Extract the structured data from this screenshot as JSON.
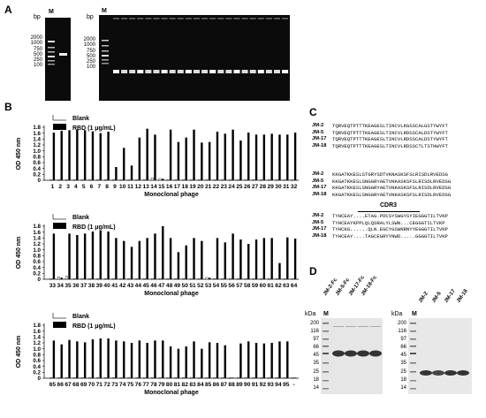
{
  "panels": {
    "a": "A",
    "b": "B",
    "c": "C",
    "d": "D"
  },
  "gel_a": {
    "unit": "bp",
    "marker": "M",
    "ladder": [
      "2000",
      "1000",
      "750",
      "500",
      "250",
      "100"
    ]
  },
  "chart_common": {
    "legend_blank": "Blank",
    "legend_rbd": "RBD (1 μg/mL)",
    "xlabel": "Monoclonal phage",
    "ylabel": "OD 450 nm",
    "yticks": [
      "0",
      "0.2",
      "0.4",
      "0.6",
      "0.8",
      "1.0",
      "1.2",
      "1.4",
      "1.6",
      "1.8"
    ]
  },
  "chart_data": [
    {
      "type": "bar",
      "categories": [
        "1",
        "2",
        "3",
        "4",
        "5",
        "6",
        "7",
        "8",
        "9",
        "10",
        "11",
        "12",
        "13",
        "14",
        "15",
        "16",
        "17",
        "18",
        "19",
        "20",
        "21",
        "22",
        "23",
        "24",
        "25",
        "26",
        "27",
        "28",
        "29",
        "30",
        "31",
        "32"
      ],
      "series": [
        {
          "name": "Blank",
          "values": [
            0.02,
            0.02,
            0.02,
            0.02,
            0.02,
            0.02,
            0.02,
            0.02,
            0.02,
            0.02,
            0.02,
            0.02,
            0.02,
            0.08,
            0.06,
            0.02,
            0.02,
            0.02,
            0.02,
            0.02,
            0.02,
            0.02,
            0.02,
            0.02,
            0.02,
            0.02,
            0.02,
            0.02,
            0.02,
            0.02,
            0.02,
            0.02
          ]
        },
        {
          "name": "RBD (1 μg/mL)",
          "values": [
            1.62,
            1.68,
            1.7,
            1.72,
            1.7,
            1.66,
            1.6,
            1.65,
            0.45,
            1.1,
            0.5,
            1.45,
            1.75,
            1.55,
            0.05,
            1.72,
            1.3,
            1.45,
            1.72,
            1.28,
            1.3,
            1.65,
            1.58,
            1.72,
            1.35,
            1.62,
            1.55,
            1.55,
            1.58,
            1.55,
            1.55,
            1.62
          ]
        }
      ],
      "ylim": [
        0,
        1.8
      ]
    },
    {
      "type": "bar",
      "categories": [
        "33",
        "34",
        "35",
        "36",
        "37",
        "38",
        "39",
        "40",
        "41",
        "42",
        "43",
        "44",
        "45",
        "46",
        "47",
        "48",
        "49",
        "50",
        "51",
        "52",
        "53",
        "54",
        "55",
        "56",
        "57",
        "58",
        "59",
        "60",
        "61",
        "62",
        "63",
        "64"
      ],
      "series": [
        {
          "name": "Blank",
          "values": [
            0.02,
            0.08,
            0.1,
            0.02,
            0.02,
            0.02,
            0.02,
            0.02,
            0.02,
            0.02,
            0.02,
            0.02,
            0.02,
            0.02,
            0.02,
            0.02,
            0.02,
            0.02,
            0.02,
            0.02,
            0.06,
            0.02,
            0.02,
            0.02,
            0.02,
            0.02,
            0.02,
            0.02,
            0.02,
            0.02,
            0.02,
            0.02
          ]
        },
        {
          "name": "RBD (1 μg/mL)",
          "values": [
            1.55,
            0.05,
            1.55,
            1.5,
            1.55,
            1.62,
            1.65,
            1.62,
            1.4,
            1.3,
            1.1,
            1.3,
            1.4,
            1.55,
            1.8,
            1.4,
            0.92,
            1.15,
            1.4,
            1.3,
            0.05,
            1.4,
            1.25,
            1.55,
            1.35,
            1.2,
            1.35,
            1.4,
            1.4,
            0.55,
            1.42,
            1.38
          ]
        }
      ],
      "ylim": [
        0,
        1.8
      ]
    },
    {
      "type": "bar",
      "categories": [
        "65",
        "66",
        "67",
        "68",
        "69",
        "70",
        "71",
        "72",
        "73",
        "74",
        "75",
        "76",
        "77",
        "78",
        "79",
        "80",
        "81",
        "82",
        "83",
        "84",
        "85",
        "86",
        "87",
        "88",
        "89",
        "90",
        "91",
        "92",
        "93",
        "94",
        "95",
        "-"
      ],
      "series": [
        {
          "name": "Blank",
          "values": [
            0.02,
            0.02,
            0.02,
            0.02,
            0.02,
            0.02,
            0.02,
            0.02,
            0.02,
            0.02,
            0.02,
            0.02,
            0.02,
            0.02,
            0.02,
            0.02,
            0.02,
            0.02,
            0.02,
            0.02,
            0.02,
            0.02,
            0.02,
            0.02,
            0.02,
            0.02,
            0.02,
            0.02,
            0.02,
            0.02,
            0.02,
            0.02
          ]
        },
        {
          "name": "RBD (1 μg/mL)",
          "values": [
            1.28,
            1.15,
            1.3,
            1.25,
            1.22,
            1.32,
            1.35,
            1.35,
            1.28,
            1.25,
            1.2,
            1.28,
            1.2,
            1.28,
            1.28,
            1.08,
            1.0,
            1.08,
            1.25,
            1.0,
            1.22,
            1.2,
            1.12,
            0.02,
            1.18,
            1.25,
            1.2,
            1.18,
            1.2,
            1.25,
            1.25,
            0.02
          ]
        }
      ],
      "ylim": [
        0,
        1.8
      ]
    }
  ],
  "seq": {
    "names": [
      "JM-2",
      "JM-5",
      "JM-17",
      "JM-18"
    ],
    "block1": [
      "TQRVEQTPTTTKEAGESLTINCVLKGSSCALGSTYWYFT",
      "TQRVEQTPTTTKEAGESLTINCVLRDSSCALDSTYWYFT",
      "TQRVEQTPTTTKEAGESLTINCVLRDSSCALDSTYWYFT",
      "TQRVEQTPTTTKEAGESLTINCVLRDSSCTLTSTHWYFT"
    ],
    "block2": [
      "KKGATKKESLSTGRYSDTVKNASKSFSLRISDLRVEDSG",
      "KKGATKKESLSNGGRYAETVNKASKSFSLRISDLRVEDSG",
      "KKGATKKESLSNGGRYAETVNKASKSFSLRISDLRVEDSG",
      "KKGATKKESLSNGGRYAETVNKASKSFSLRISDLRVEDSG"
    ],
    "cdr3_label": "CDR3",
    "block3": [
      "TYHCEAY....ETAG.PDCSYSWGYSYIEGGGTILTVKP",
      "TYHCEAYKPPLQLQSRALYLSWN...CEGGGTILTVKP",
      "TYHCKG......QLN.EGCYGSWNRNYYEGGGTILTVKP",
      "TYHCEAY....TAGCEGRYYNWD.....GGGGTILTVKP"
    ]
  },
  "gel_d": {
    "unit": "kDa",
    "marker": "M",
    "ladder": [
      "200",
      "116",
      "97",
      "66",
      "45",
      "35",
      "25",
      "18",
      "14"
    ],
    "right_ladder": [
      "200",
      "116",
      "97",
      "66",
      "45",
      "35",
      "25",
      "18",
      "14"
    ],
    "left_lanes": [
      "JM-2-Fc",
      "JM-5-Fc",
      "JM-17-Fc",
      "JM-18-Fc"
    ],
    "right_lanes": [
      "JM-2",
      "JM-5",
      "JM-17",
      "JM-18"
    ]
  }
}
